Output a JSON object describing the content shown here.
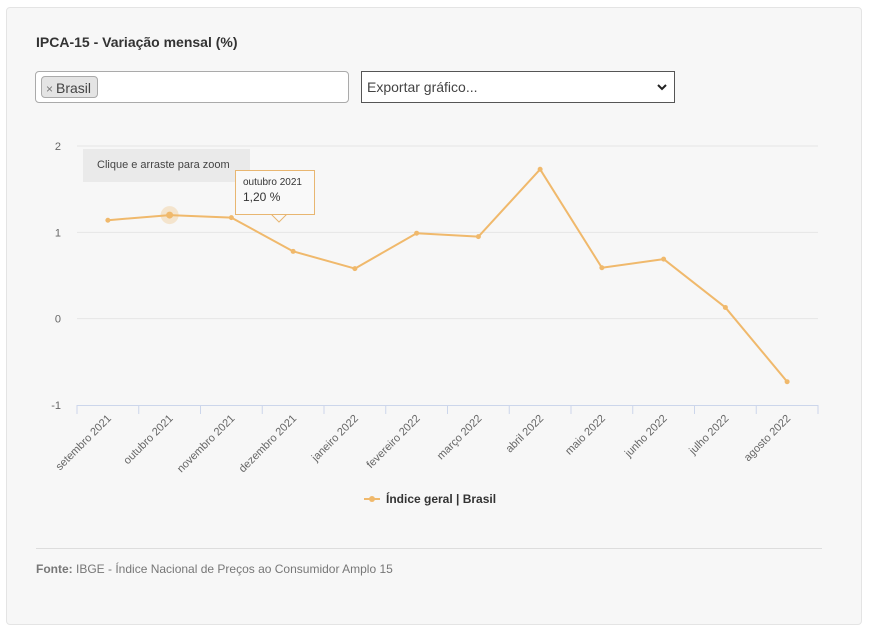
{
  "header": {
    "title": "IPCA-15 - Variação mensal (%)"
  },
  "filter": {
    "chip_label": "Brasil",
    "chip_remove": "×"
  },
  "export": {
    "label": "Exportar gráfico...",
    "icon": "chevron-down-icon"
  },
  "zoom_hint": "Clique e arraste para zoom",
  "tooltip": {
    "date": "outubro 2021",
    "value": "1,20 %"
  },
  "footer": {
    "source_label": "Fonte:",
    "source_text": "IBGE - Índice Nacional de Preços ao Consumidor Amplo 15"
  },
  "colors": {
    "series": "#f0b96c",
    "grid": "#e6e6e6",
    "axis": "#ccd6eb"
  },
  "chart_data": {
    "type": "line",
    "title": "IPCA-15 - Variação mensal (%)",
    "categories": [
      "setembro 2021",
      "outubro 2021",
      "novembro 2021",
      "dezembro 2021",
      "janeiro 2022",
      "fevereiro 2022",
      "março 2022",
      "abril 2022",
      "maio 2022",
      "junho 2022",
      "julho 2022",
      "agosto 2022"
    ],
    "series": [
      {
        "name": "Índice geral | Brasil",
        "values": [
          1.14,
          1.2,
          1.17,
          0.78,
          0.58,
          0.99,
          0.95,
          1.73,
          0.59,
          0.69,
          0.13,
          -0.73
        ]
      }
    ],
    "yticks": [
      "2",
      "1",
      "0",
      "-1"
    ],
    "ylim": [
      -1,
      2
    ],
    "grid": true,
    "legend": "bottom-center",
    "highlighted_index": 1
  }
}
